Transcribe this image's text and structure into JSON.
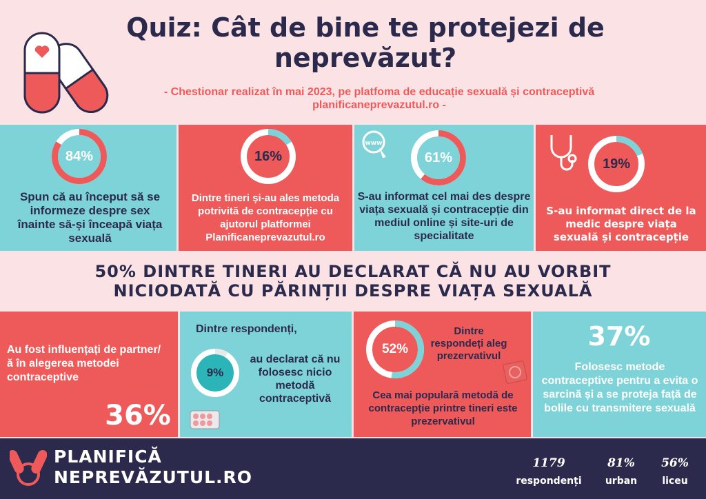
{
  "header": {
    "title": "Quiz: Cât de bine te protejezi de neprevăzut?",
    "subtitle": "- Chestionar realizat în mai 2023,  pe platfoma de educație sexuală și contraceptivă planificaneprevazutul.ro -"
  },
  "panels_top": [
    {
      "percent": "84%",
      "text": "Spun că au început să se informeze despre sex înainte să-și înceapă viața sexuală"
    },
    {
      "percent": "16%",
      "text": "Dintre tineri și-au ales metoda potrivită de contracepție cu ajutorul platformei Planificaneprevazutul.ro"
    },
    {
      "percent": "61%",
      "text": "S-au informat cel mai des despre viața sexuală și contracepție din mediul online și site-uri de specialitate"
    },
    {
      "percent": "19%",
      "text": "S-au informat direct de la medic despre  viața sexuală și contracepție"
    }
  ],
  "banner": {
    "text": "50% DINTRE TINERI AU DECLARAT CĂ NU AU VORBIT NICIODATĂ CU PĂRINȚII DESPRE VIAȚA SEXUALĂ"
  },
  "panels_bottom": {
    "p1": {
      "text": "Au fost influențați de partner/ă în alegerea metodei contraceptive",
      "percent": "36%"
    },
    "p2": {
      "intro": "Dintre respondenți,",
      "percent": "9%",
      "text": "au declarat că nu folosesc nicio metodă contraceptivă"
    },
    "p3": {
      "percent": "52%",
      "side": "Dintre respondeți aleg prezervativul",
      "text": "Cea mai populară  metodă de contracepție printre tineri este prezervativul"
    },
    "p4": {
      "percent": "37%",
      "text": "Folosesc metode contraceptive pentru a evita o sarcină și a se proteja față de bolile cu transmitere sexuală"
    }
  },
  "footer": {
    "brand_line1": "PLANIFICĂ",
    "brand_line2": "NEPREVĂZUTUL.RO",
    "stats": [
      {
        "value": "1179",
        "label": "respondenți"
      },
      {
        "value": "81%",
        "label": "urban"
      },
      {
        "value": "56%",
        "label": "liceu"
      }
    ]
  },
  "chart_data": [
    {
      "type": "pie",
      "values": [
        84,
        16
      ],
      "ring": "panel-1"
    },
    {
      "type": "pie",
      "values": [
        16,
        84
      ],
      "ring": "panel-2"
    },
    {
      "type": "pie",
      "values": [
        61,
        39
      ],
      "ring": "panel-3"
    },
    {
      "type": "pie",
      "values": [
        19,
        81
      ],
      "ring": "panel-4"
    },
    {
      "type": "pie",
      "values": [
        9,
        91
      ],
      "ring": "panel-b2"
    },
    {
      "type": "pie",
      "values": [
        52,
        48
      ],
      "ring": "panel-b3"
    }
  ],
  "colors": {
    "teal": "#7dd3d8",
    "red": "#ee5a5a",
    "navy": "#2b2a4c",
    "pink": "#fbe3e5"
  },
  "icons": [
    "pill-capsule-icon",
    "www-globe-icon",
    "stethoscope-icon",
    "pill-blister-icon",
    "condom-icon",
    "brand-logo-icon"
  ]
}
